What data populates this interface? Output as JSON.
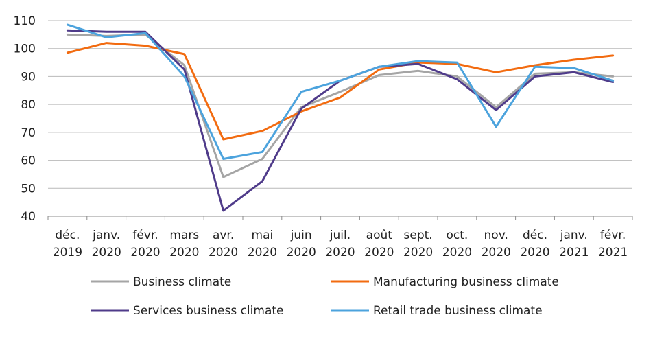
{
  "chart_data": {
    "type": "line",
    "categories": [
      [
        "déc.",
        "2019"
      ],
      [
        "janv.",
        "2020"
      ],
      [
        "févr.",
        "2020"
      ],
      [
        "mars",
        "2020"
      ],
      [
        "avr.",
        "2020"
      ],
      [
        "mai",
        "2020"
      ],
      [
        "juin",
        "2020"
      ],
      [
        "juil.",
        "2020"
      ],
      [
        "août",
        "2020"
      ],
      [
        "sept.",
        "2020"
      ],
      [
        "oct.",
        "2020"
      ],
      [
        "nov.",
        "2020"
      ],
      [
        "déc.",
        "2020"
      ],
      [
        "janv.",
        "2021"
      ],
      [
        "févr.",
        "2021"
      ]
    ],
    "ylim": [
      40,
      110
    ],
    "yticks": [
      "40",
      "50",
      "60",
      "70",
      "80",
      "90",
      "100",
      "110"
    ],
    "grid": true,
    "legend_position": "bottom",
    "series": [
      {
        "name": "Business climate",
        "color": "#a5a5a5",
        "values": [
          105,
          104.5,
          105,
          94,
          54,
          60.5,
          79,
          84.5,
          90.5,
          92,
          90,
          79,
          91,
          91.5,
          90
        ]
      },
      {
        "name": "Manufacturing business climate",
        "color": "#f26b10",
        "values": [
          98.5,
          102,
          101,
          98,
          67.5,
          70.5,
          77.5,
          82.5,
          92.5,
          95,
          94.5,
          91.5,
          94,
          96,
          97.5
        ]
      },
      {
        "name": "Services business climate",
        "color": "#4f3b8a",
        "values": [
          106.5,
          106,
          106,
          92.5,
          42,
          52.5,
          78.5,
          88.5,
          93.5,
          94.5,
          89,
          78,
          90,
          91.5,
          88
        ]
      },
      {
        "name": "Retail trade business climate",
        "color": "#4ca3dd",
        "values": [
          108.5,
          104,
          105.5,
          90,
          60.5,
          63,
          84.5,
          88.5,
          93.5,
          95.5,
          95,
          72,
          93.5,
          93,
          88.5
        ]
      }
    ]
  }
}
